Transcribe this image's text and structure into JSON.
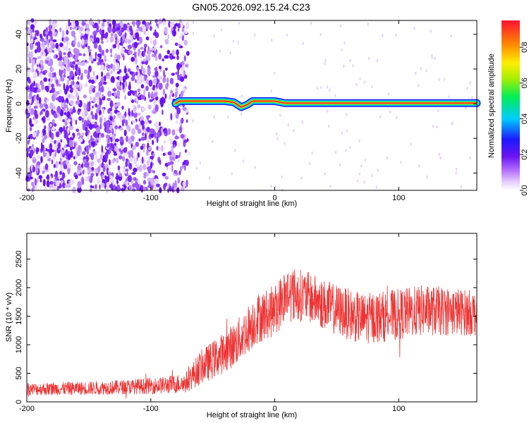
{
  "figure": {
    "title": "GN05.2026.092.15.24.C23"
  },
  "chart_data": [
    {
      "type": "heatmap",
      "title": "GN05.2026.092.15.24.C23",
      "xlabel": "Height of straight line (km)",
      "ylabel": "Frequency (Hz)",
      "xlim": [
        -200,
        163
      ],
      "ylim": [
        -50,
        48
      ],
      "xticks": [
        -200,
        -100,
        0,
        100
      ],
      "yticks": [
        -40,
        -20,
        0,
        20,
        40
      ],
      "colorbar": {
        "label": "Normalized spectral amplitude",
        "range": [
          0.0,
          0.95
        ],
        "ticks": [
          0.0,
          0.2,
          0.4,
          0.6,
          0.8
        ]
      },
      "signal_track": [
        {
          "x": -80,
          "freq": 0.0
        },
        {
          "x": -77,
          "freq": 1.5
        },
        {
          "x": -60,
          "freq": 1.5
        },
        {
          "x": -40,
          "freq": 1.5
        },
        {
          "x": -33,
          "freq": 0.8
        },
        {
          "x": -27,
          "freq": -2.0
        },
        {
          "x": -22,
          "freq": -0.5
        },
        {
          "x": -18,
          "freq": 1.5
        },
        {
          "x": 0,
          "freq": 1.5
        },
        {
          "x": 8,
          "freq": 0.3
        },
        {
          "x": 163,
          "freq": 0.3
        }
      ],
      "noise_region_x": [
        -200,
        -80
      ]
    },
    {
      "type": "line",
      "xlabel": "Height of straight line (km)",
      "ylabel": "SNR (10 * v/v)",
      "xlim": [
        -200,
        163
      ],
      "ylim": [
        0,
        2950
      ],
      "xticks": [
        -200,
        -100,
        0,
        100
      ],
      "yticks": [
        0,
        500,
        1000,
        1500,
        2000,
        2500
      ],
      "series": [
        {
          "name": "SNR",
          "color": "#ee3333",
          "envelope": [
            {
              "x": -200,
              "base": 220,
              "amp": 110
            },
            {
              "x": -150,
              "base": 240,
              "amp": 120
            },
            {
              "x": -120,
              "base": 260,
              "amp": 130
            },
            {
              "x": -90,
              "base": 290,
              "amp": 150
            },
            {
              "x": -72,
              "base": 330,
              "amp": 180
            },
            {
              "x": -60,
              "base": 600,
              "amp": 300
            },
            {
              "x": -45,
              "base": 800,
              "amp": 350
            },
            {
              "x": -30,
              "base": 1050,
              "amp": 400
            },
            {
              "x": -15,
              "base": 1450,
              "amp": 450
            },
            {
              "x": 0,
              "base": 1600,
              "amp": 450
            },
            {
              "x": 10,
              "base": 1900,
              "amp": 500
            },
            {
              "x": 25,
              "base": 1850,
              "amp": 450
            },
            {
              "x": 45,
              "base": 1650,
              "amp": 450
            },
            {
              "x": 70,
              "base": 1450,
              "amp": 450
            },
            {
              "x": 90,
              "base": 1500,
              "amp": 450
            },
            {
              "x": 120,
              "base": 1600,
              "amp": 450
            },
            {
              "x": 145,
              "base": 1580,
              "amp": 420
            },
            {
              "x": 163,
              "base": 1550,
              "amp": 400
            }
          ]
        }
      ]
    }
  ]
}
